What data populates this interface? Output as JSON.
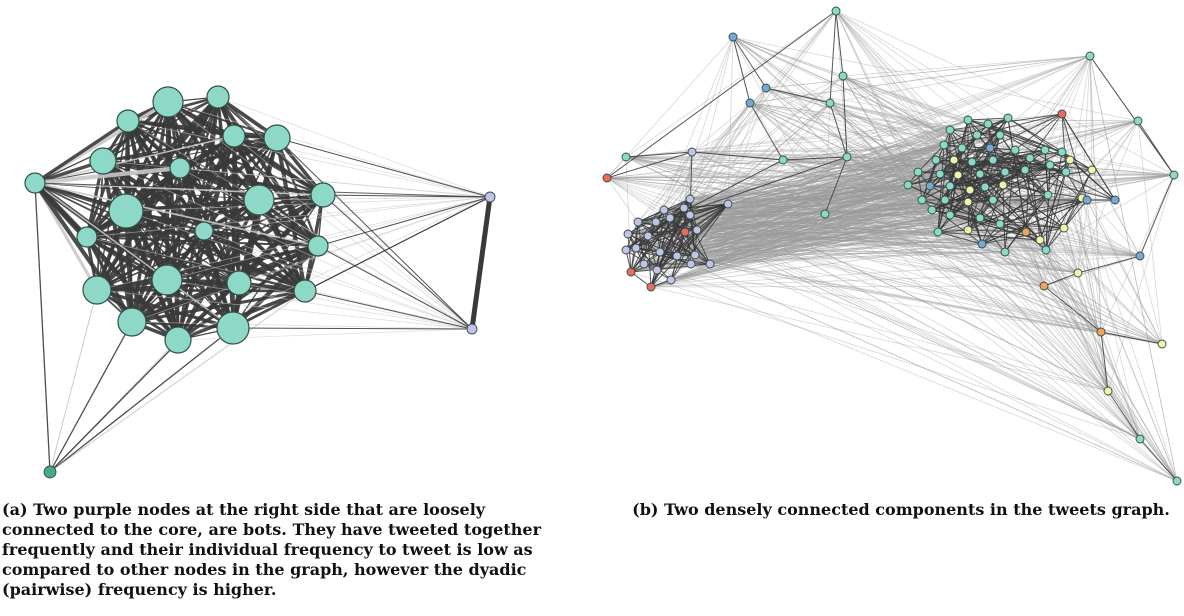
{
  "colors": {
    "teal": "#8ed8c8",
    "purple": "#c4c2e6",
    "dark_teal": "#4aa88a",
    "red": "#ee6b5b",
    "blue": "#7aa6d6",
    "yellow": "#f4f4a8",
    "orange": "#f4a25a",
    "edge_dark": "#3a3a3a",
    "edge_light": "#c8c8c8",
    "edge_gray": "#9a9a9a"
  },
  "captions": {
    "a": {
      "label": "(a)",
      "text": "Two purple nodes at the right side that are loosely connected to the core, are bots. They have tweeted together frequently and their individual frequency to tweet is low as compared to other nodes in the graph, however the dyadic (pairwise) frequency is higher."
    },
    "b": {
      "label": "(b)",
      "text": "Two densely connected components in the tweets graph."
    }
  }
}
